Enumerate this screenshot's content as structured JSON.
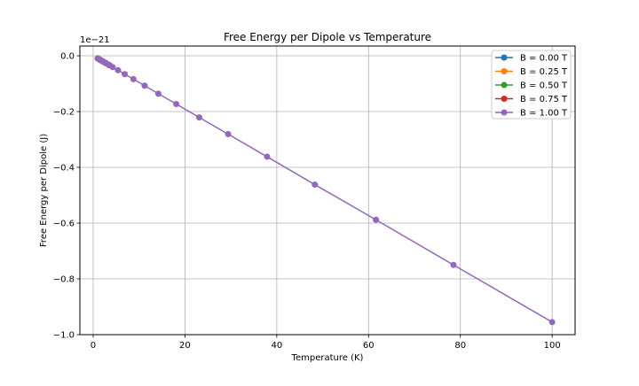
{
  "chart_data": {
    "type": "line",
    "title": "Free Energy per Dipole vs Temperature",
    "xlabel": "Temperature (K)",
    "ylabel": "Free Energy per Dipole (J)",
    "y_offset_label": "1e−21",
    "xlim": [
      -2.9,
      105
    ],
    "ylim": [
      -1.0,
      0.035
    ],
    "xticks": [
      0,
      20,
      40,
      60,
      80,
      100
    ],
    "xtick_labels": [
      "0",
      "20",
      "40",
      "60",
      "80",
      "100"
    ],
    "yticks": [
      0.0,
      -0.2,
      -0.4,
      -0.6,
      -0.8,
      -1.0
    ],
    "ytick_labels": [
      "0.0",
      "−0.2",
      "−0.4",
      "−0.6",
      "−0.8",
      "−1.0"
    ],
    "grid": true,
    "legend_position": "top-right",
    "series": [
      {
        "name": "B = 0.00 T",
        "color": "#1f77b4",
        "x": [
          1.0,
          1.28,
          1.65,
          2.12,
          2.72,
          3.49
        ],
        "y": [
          -0.0095,
          -0.0122,
          -0.0157,
          -0.0202,
          -0.0259,
          -0.0333
        ]
      },
      {
        "name": "B = 0.25 T",
        "color": "#ff7f0e",
        "x": [
          1.0,
          1.28,
          1.65,
          2.12,
          2.72,
          3.49
        ],
        "y": [
          -0.0095,
          -0.0122,
          -0.0157,
          -0.0202,
          -0.0259,
          -0.0333
        ]
      },
      {
        "name": "B = 0.50 T",
        "color": "#2ca02c",
        "x": [
          1.0,
          1.28,
          1.65,
          2.12,
          2.72,
          3.49
        ],
        "y": [
          -0.0096,
          -0.0123,
          -0.0158,
          -0.0203,
          -0.026,
          -0.0334
        ]
      },
      {
        "name": "B = 0.75 T",
        "color": "#d62728",
        "x": [
          1.0,
          1.28,
          1.65,
          2.12,
          2.72,
          3.49
        ],
        "y": [
          -0.0097,
          -0.0124,
          -0.0159,
          -0.0204,
          -0.0261,
          -0.0335
        ]
      },
      {
        "name": "B = 1.00 T",
        "color": "#9467bd",
        "x": [
          1.0,
          1.27,
          1.62,
          2.06,
          2.62,
          3.34,
          4.25,
          5.41,
          6.88,
          8.76,
          11.2,
          14.2,
          18.1,
          23.1,
          29.4,
          37.9,
          48.3,
          61.6,
          78.5,
          100.0
        ],
        "y": [
          -0.0095,
          -0.0121,
          -0.0155,
          -0.0197,
          -0.025,
          -0.0319,
          -0.0406,
          -0.0517,
          -0.0658,
          -0.0837,
          -0.107,
          -0.136,
          -0.173,
          -0.221,
          -0.281,
          -0.362,
          -0.462,
          -0.588,
          -0.75,
          -0.955
        ]
      }
    ]
  }
}
